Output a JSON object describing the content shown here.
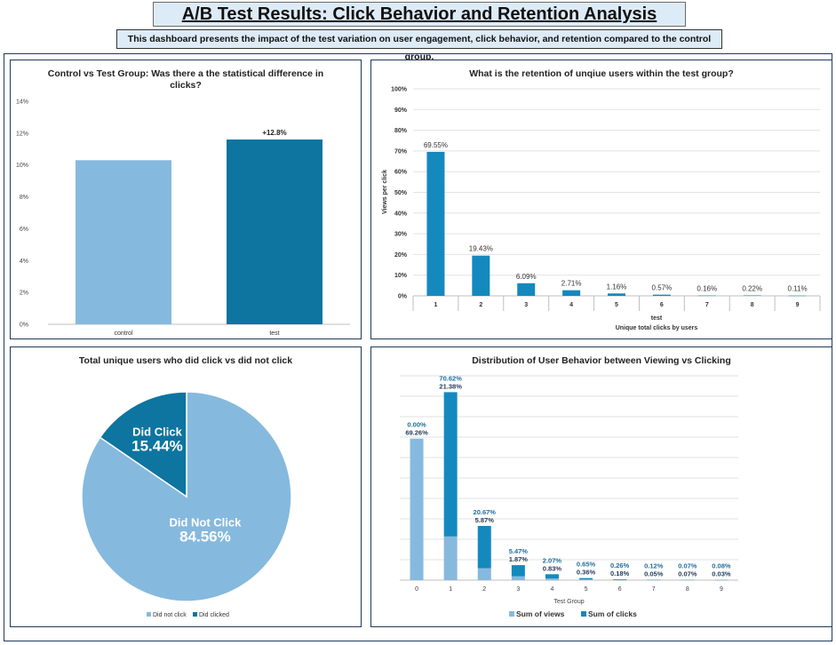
{
  "header": {
    "title": "A/B Test Results: Click Behavior and Retention Analysis",
    "subtitle": "This dashboard presents the impact of the test variation on user engagement, click behavior, and retention compared to the control group."
  },
  "colors": {
    "light_blue": "#86b9de",
    "dark_blue": "#0e74a0",
    "mid_blue": "#1489bd",
    "label_blue": "#1e6fa0"
  },
  "chart_data": [
    {
      "type": "bar",
      "title": "Control vs Test Group: Was there a the statistical difference in clicks?",
      "categories": [
        "control",
        "test"
      ],
      "values": [
        10.3,
        11.6
      ],
      "data_labels": [
        "",
        "+12.8%"
      ],
      "ylim": [
        0,
        14
      ],
      "yticks": [
        "0%",
        "2%",
        "4%",
        "6%",
        "8%",
        "10%",
        "12%",
        "14%"
      ],
      "grid": false
    },
    {
      "type": "bar",
      "title": "What is the retention of unqiue users within the test group?",
      "categories": [
        "1",
        "2",
        "3",
        "4",
        "5",
        "6",
        "7",
        "8",
        "9"
      ],
      "values": [
        69.55,
        19.43,
        6.09,
        2.71,
        1.16,
        0.57,
        0.16,
        0.22,
        0.11
      ],
      "data_labels": [
        "69.55%",
        "19.43%",
        "6.09%",
        "2.71%",
        "1.16%",
        "0.57%",
        "0.16%",
        "0.22%",
        "0.11%"
      ],
      "ylim": [
        0,
        100
      ],
      "yticks": [
        "0%",
        "10%",
        "20%",
        "30%",
        "40%",
        "50%",
        "60%",
        "70%",
        "80%",
        "90%",
        "100%"
      ],
      "ylabel": "Views per click",
      "group_label": "test",
      "xlabel": "Unique total clicks by users",
      "grid": true
    },
    {
      "type": "pie",
      "title": "Total unique users who did click vs did not click",
      "slices": [
        {
          "name": "Did Not Click",
          "value": 84.56,
          "label": "84.56%"
        },
        {
          "name": "Did Click",
          "value": 15.44,
          "label": "15.44%"
        }
      ],
      "legend": [
        "Did not click",
        "Did clicked"
      ],
      "legend_position": "bottom"
    },
    {
      "type": "bar",
      "stacked": true,
      "title": "Distribution of User Behavior between Viewing vs Clicking",
      "categories": [
        "0",
        "1",
        "2",
        "3",
        "4",
        "5",
        "6",
        "7",
        "8",
        "9"
      ],
      "series": [
        {
          "name": "Sum of views",
          "values": [
            69.26,
            21.38,
            5.87,
            1.87,
            0.83,
            0.36,
            0.18,
            0.05,
            0.07,
            0.03
          ],
          "labels": [
            "69.26%",
            "21.38%",
            "5.87%",
            "1.87%",
            "0.83%",
            "0.36%",
            "0.18%",
            "0.05%",
            "0.07%",
            "0.03%"
          ]
        },
        {
          "name": "Sum of clicks",
          "values": [
            0.0,
            70.62,
            20.67,
            5.47,
            2.07,
            0.65,
            0.26,
            0.12,
            0.07,
            0.08
          ],
          "labels": [
            "0.00%",
            "70.62%",
            "20.67%",
            "5.47%",
            "2.07%",
            "0.65%",
            "0.26%",
            "0.12%",
            "0.07%",
            "0.08%"
          ]
        }
      ],
      "xlabel": "Test Group",
      "legend_position": "bottom",
      "grid": true
    }
  ]
}
